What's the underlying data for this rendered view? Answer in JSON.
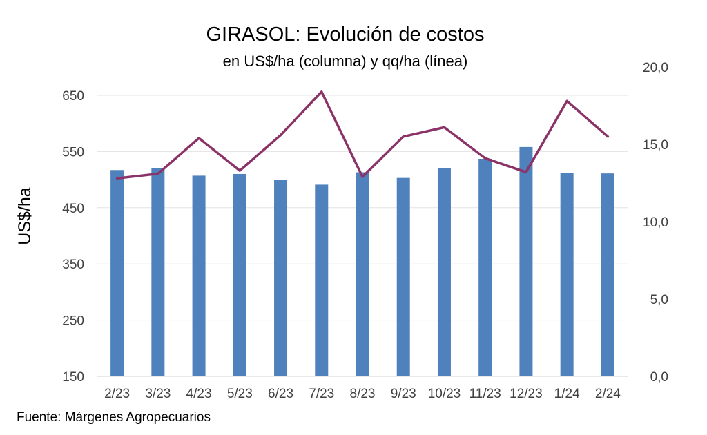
{
  "chart_data": {
    "type": "bar",
    "title": "GIRASOL: Evolución de costos",
    "subtitle": "en US$/ha (columna) y qq/ha (línea)",
    "ylabel": "US$/ha",
    "categories": [
      "2/23",
      "3/23",
      "4/23",
      "5/23",
      "6/23",
      "7/23",
      "8/23",
      "9/23",
      "10/23",
      "11/23",
      "12/23",
      "1/24",
      "2/24"
    ],
    "y_ticks": [
      "150",
      "250",
      "350",
      "450",
      "550",
      "650"
    ],
    "y2_ticks": [
      "0,0",
      "5,0",
      "10,0",
      "15,0",
      "20,0"
    ],
    "ylim": [
      150,
      650
    ],
    "y2lim": [
      0,
      20
    ],
    "grid": true,
    "series": [
      {
        "type": "bar",
        "axis": "left",
        "color": "#4f81bd",
        "values": [
          517,
          520,
          507,
          510,
          500,
          491,
          513,
          503,
          520,
          537,
          558,
          512,
          511
        ]
      },
      {
        "type": "line",
        "axis": "right",
        "color": "#8b3367",
        "values": [
          12.8,
          13.1,
          15.4,
          13.3,
          15.6,
          18.4,
          12.9,
          15.5,
          16.1,
          14.1,
          13.2,
          17.8,
          15.5
        ]
      }
    ]
  },
  "footer": {
    "source": "Fuente: Márgenes Agropecuarios"
  }
}
